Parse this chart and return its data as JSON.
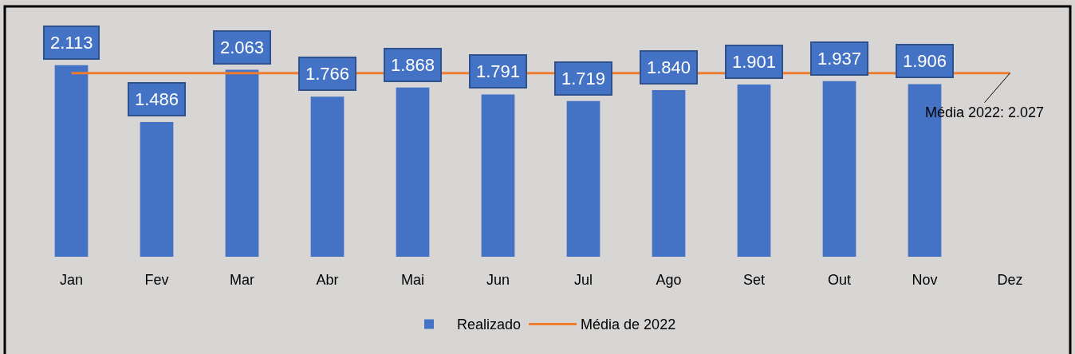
{
  "chart_data": {
    "type": "bar",
    "categories": [
      "Jan",
      "Fev",
      "Mar",
      "Abr",
      "Mai",
      "Jun",
      "Jul",
      "Ago",
      "Set",
      "Out",
      "Nov",
      "Dez"
    ],
    "series": [
      {
        "name": "Realizado",
        "color": "#4472c4",
        "values": [
          2.113,
          1.486,
          2.063,
          1.766,
          1.868,
          1.791,
          1.719,
          1.84,
          1.901,
          1.937,
          1.906,
          null
        ],
        "value_labels": [
          "2.113",
          "1.486",
          "2.063",
          "1.766",
          "1.868",
          "1.791",
          "1.719",
          "1.840",
          "1.901",
          "1.937",
          "1.906",
          null
        ]
      },
      {
        "name": "Média de 2022",
        "type": "line",
        "color": "#ed7d31",
        "x": [
          "Jan",
          "Fev",
          "Mar",
          "Dez"
        ],
        "values": [
          2.027,
          2.027,
          2.027,
          2.027
        ]
      }
    ],
    "annotations": [
      {
        "text": "Média 2022: 2.027",
        "x": "Dez",
        "y": 2.027
      }
    ],
    "marker": "none",
    "line_style": "solid",
    "legend": "bottom",
    "grid": false,
    "tick_labels": "x"
  }
}
